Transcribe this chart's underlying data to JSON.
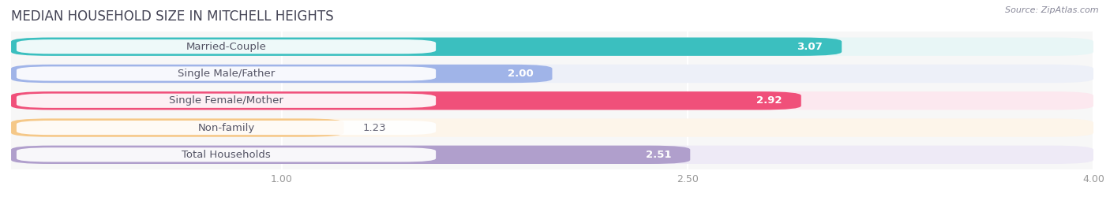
{
  "title": "MEDIAN HOUSEHOLD SIZE IN MITCHELL HEIGHTS",
  "source": "Source: ZipAtlas.com",
  "categories": [
    "Married-Couple",
    "Single Male/Father",
    "Single Female/Mother",
    "Non-family",
    "Total Households"
  ],
  "values": [
    3.07,
    2.0,
    2.92,
    1.23,
    2.51
  ],
  "bar_colors": [
    "#3bbfbf",
    "#a0b4e8",
    "#f0507a",
    "#f5c888",
    "#b09fcc"
  ],
  "bar_bg_colors": [
    "#e8f6f6",
    "#edf0f8",
    "#fce8ef",
    "#fdf5ea",
    "#eeeaf6"
  ],
  "xlim_min": 0,
  "xlim_max": 4.0,
  "xticks": [
    1.0,
    2.5,
    4.0
  ],
  "label_fontsize": 9.5,
  "value_fontsize": 9.5,
  "title_fontsize": 12,
  "bg_color": "#ffffff",
  "plot_bg": "#f7f7f7",
  "text_color": "#555566",
  "value_inside_color": "#ffffff",
  "value_outside_color": "#666677",
  "value_inside_threshold": 2.0
}
